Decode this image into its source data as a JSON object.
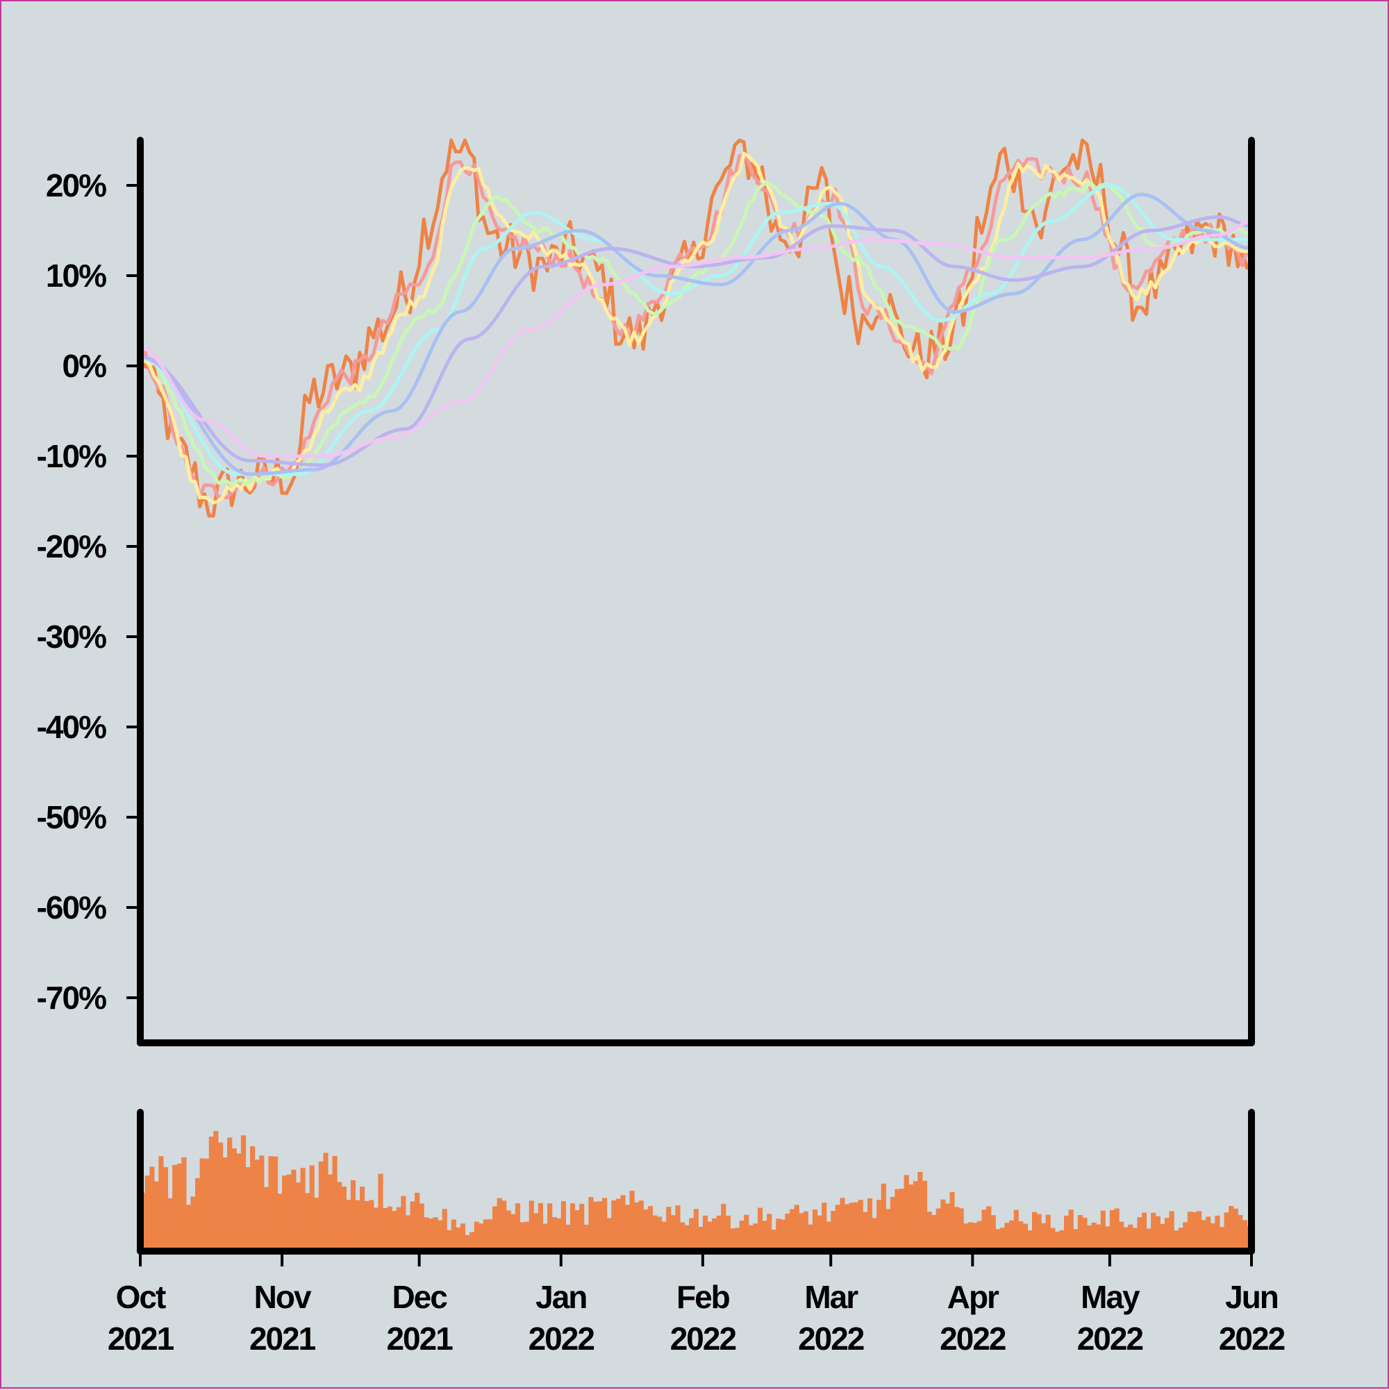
{
  "chart_data": [
    {
      "type": "line",
      "title": "",
      "xlabel": "",
      "ylabel": "",
      "x_range": [
        "2021-10-01",
        "2022-06-01"
      ],
      "ylim": [
        -0.75,
        0.25
      ],
      "y_ticks": [
        {
          "value": 0.2,
          "label": "20%"
        },
        {
          "value": 0.1,
          "label": "10%"
        },
        {
          "value": 0.0,
          "label": "0%"
        },
        {
          "value": -0.1,
          "label": "-10%"
        },
        {
          "value": -0.2,
          "label": "-20%"
        },
        {
          "value": -0.3,
          "label": "-30%"
        },
        {
          "value": -0.4,
          "label": "-40%"
        },
        {
          "value": -0.5,
          "label": "-50%"
        },
        {
          "value": -0.6,
          "label": "-60%"
        },
        {
          "value": -0.7,
          "label": "-70%"
        }
      ],
      "grid": false,
      "legend": "none",
      "raw_series": {
        "color": "#ee8347",
        "keypoints": [
          [
            "2021-10-01",
            0.02
          ],
          [
            "2021-10-05",
            -0.04
          ],
          [
            "2021-10-10",
            -0.1
          ],
          [
            "2021-10-16",
            -0.15
          ],
          [
            "2021-10-22",
            -0.13
          ],
          [
            "2021-10-28",
            -0.125
          ],
          [
            "2021-11-03",
            -0.12
          ],
          [
            "2021-11-08",
            -0.03
          ],
          [
            "2021-11-15",
            -0.01
          ],
          [
            "2021-11-22",
            0.04
          ],
          [
            "2021-11-28",
            0.08
          ],
          [
            "2021-12-03",
            0.16
          ],
          [
            "2021-12-08",
            0.24
          ],
          [
            "2021-12-12",
            0.23
          ],
          [
            "2021-12-16",
            0.15
          ],
          [
            "2021-12-20",
            0.13
          ],
          [
            "2021-12-28",
            0.11
          ],
          [
            "2022-01-03",
            0.13
          ],
          [
            "2022-01-10",
            0.1
          ],
          [
            "2022-01-14",
            0.04
          ],
          [
            "2022-01-18",
            0.03
          ],
          [
            "2022-01-23",
            0.08
          ],
          [
            "2022-01-29",
            0.11
          ],
          [
            "2022-02-04",
            0.19
          ],
          [
            "2022-02-09",
            0.24
          ],
          [
            "2022-02-13",
            0.22
          ],
          [
            "2022-02-17",
            0.15
          ],
          [
            "2022-02-21",
            0.14
          ],
          [
            "2022-02-27",
            0.2
          ],
          [
            "2022-03-04",
            0.08
          ],
          [
            "2022-03-08",
            0.05
          ],
          [
            "2022-03-12",
            0.08
          ],
          [
            "2022-03-17",
            0.03
          ],
          [
            "2022-03-21",
            0.01
          ],
          [
            "2022-03-25",
            0.02
          ],
          [
            "2022-03-30",
            0.06
          ],
          [
            "2022-04-03",
            0.16
          ],
          [
            "2022-04-08",
            0.23
          ],
          [
            "2022-04-12",
            0.2
          ],
          [
            "2022-04-16",
            0.15
          ],
          [
            "2022-04-20",
            0.22
          ],
          [
            "2022-04-24",
            0.23
          ],
          [
            "2022-04-29",
            0.2
          ],
          [
            "2022-05-03",
            0.13
          ],
          [
            "2022-05-07",
            0.07
          ],
          [
            "2022-05-12",
            0.09
          ],
          [
            "2022-05-17",
            0.13
          ],
          [
            "2022-05-22",
            0.15
          ],
          [
            "2022-05-27",
            0.14
          ],
          [
            "2022-06-01",
            0.09
          ]
        ]
      },
      "series": [
        {
          "color": "#f59a9a",
          "points": [
            [
              "2021-10-01",
              0.01
            ],
            [
              "2021-10-15",
              -0.14
            ],
            [
              "2021-11-01",
              -0.12
            ],
            [
              "2021-11-15",
              -0.01
            ],
            [
              "2021-12-01",
              0.09
            ],
            [
              "2021-12-10",
              0.23
            ],
            [
              "2021-12-20",
              0.14
            ],
            [
              "2022-01-01",
              0.12
            ],
            [
              "2022-01-15",
              0.04
            ],
            [
              "2022-02-01",
              0.14
            ],
            [
              "2022-02-10",
              0.23
            ],
            [
              "2022-02-20",
              0.15
            ],
            [
              "2022-03-01",
              0.19
            ],
            [
              "2022-03-10",
              0.06
            ],
            [
              "2022-03-22",
              0.0
            ],
            [
              "2022-04-01",
              0.11
            ],
            [
              "2022-04-10",
              0.22
            ],
            [
              "2022-04-25",
              0.21
            ],
            [
              "2022-05-05",
              0.09
            ],
            [
              "2022-05-20",
              0.15
            ],
            [
              "2022-06-01",
              0.12
            ]
          ]
        },
        {
          "color": "#ffeea0",
          "points": [
            [
              "2021-10-01",
              0.01
            ],
            [
              "2021-10-16",
              -0.145
            ],
            [
              "2021-11-01",
              -0.12
            ],
            [
              "2021-11-15",
              -0.03
            ],
            [
              "2021-12-01",
              0.07
            ],
            [
              "2021-12-11",
              0.225
            ],
            [
              "2021-12-22",
              0.15
            ],
            [
              "2022-01-02",
              0.12
            ],
            [
              "2022-01-17",
              0.03
            ],
            [
              "2022-02-01",
              0.13
            ],
            [
              "2022-02-11",
              0.23
            ],
            [
              "2022-02-21",
              0.14
            ],
            [
              "2022-03-01",
              0.2
            ],
            [
              "2022-03-11",
              0.06
            ],
            [
              "2022-03-23",
              -0.005
            ],
            [
              "2022-04-02",
              0.1
            ],
            [
              "2022-04-12",
              0.22
            ],
            [
              "2022-04-26",
              0.2
            ],
            [
              "2022-05-07",
              0.08
            ],
            [
              "2022-05-20",
              0.14
            ],
            [
              "2022-06-01",
              0.13
            ]
          ]
        },
        {
          "color": "#c8f7b5",
          "points": [
            [
              "2021-10-01",
              0.01
            ],
            [
              "2021-10-20",
              -0.13
            ],
            [
              "2021-11-03",
              -0.12
            ],
            [
              "2021-11-18",
              -0.04
            ],
            [
              "2021-12-03",
              0.06
            ],
            [
              "2021-12-18",
              0.185
            ],
            [
              "2021-12-28",
              0.15
            ],
            [
              "2022-01-08",
              0.12
            ],
            [
              "2022-01-22",
              0.06
            ],
            [
              "2022-02-03",
              0.11
            ],
            [
              "2022-02-15",
              0.2
            ],
            [
              "2022-02-26",
              0.17
            ],
            [
              "2022-03-06",
              0.12
            ],
            [
              "2022-03-18",
              0.04
            ],
            [
              "2022-03-28",
              0.02
            ],
            [
              "2022-04-08",
              0.14
            ],
            [
              "2022-04-18",
              0.19
            ],
            [
              "2022-04-30",
              0.2
            ],
            [
              "2022-05-12",
              0.13
            ],
            [
              "2022-05-22",
              0.15
            ],
            [
              "2022-06-01",
              0.15
            ]
          ]
        },
        {
          "color": "#aef4f2",
          "points": [
            [
              "2021-10-01",
              0.01
            ],
            [
              "2021-10-22",
              -0.12
            ],
            [
              "2021-11-05",
              -0.12
            ],
            [
              "2021-11-20",
              -0.05
            ],
            [
              "2021-12-05",
              0.04
            ],
            [
              "2021-12-15",
              0.13
            ],
            [
              "2021-12-26",
              0.17
            ],
            [
              "2022-01-08",
              0.14
            ],
            [
              "2022-01-25",
              0.08
            ],
            [
              "2022-02-05",
              0.1
            ],
            [
              "2022-02-18",
              0.17
            ],
            [
              "2022-03-01",
              0.18
            ],
            [
              "2022-03-12",
              0.11
            ],
            [
              "2022-03-25",
              0.05
            ],
            [
              "2022-04-05",
              0.08
            ],
            [
              "2022-04-18",
              0.16
            ],
            [
              "2022-05-01",
              0.2
            ],
            [
              "2022-05-15",
              0.14
            ],
            [
              "2022-06-01",
              0.14
            ]
          ]
        },
        {
          "color": "#a9c0f2",
          "points": [
            [
              "2021-10-01",
              0.01
            ],
            [
              "2021-10-25",
              -0.12
            ],
            [
              "2021-11-08",
              -0.115
            ],
            [
              "2021-11-25",
              -0.05
            ],
            [
              "2021-12-10",
              0.06
            ],
            [
              "2021-12-22",
              0.13
            ],
            [
              "2022-01-05",
              0.15
            ],
            [
              "2022-01-22",
              0.1
            ],
            [
              "2022-02-05",
              0.09
            ],
            [
              "2022-02-20",
              0.15
            ],
            [
              "2022-03-03",
              0.18
            ],
            [
              "2022-03-15",
              0.14
            ],
            [
              "2022-03-28",
              0.06
            ],
            [
              "2022-04-10",
              0.08
            ],
            [
              "2022-04-25",
              0.14
            ],
            [
              "2022-05-08",
              0.19
            ],
            [
              "2022-05-22",
              0.15
            ],
            [
              "2022-06-01",
              0.13
            ]
          ]
        },
        {
          "color": "#bcb3f0",
          "points": [
            [
              "2021-10-01",
              0.01
            ],
            [
              "2021-10-25",
              -0.105
            ],
            [
              "2021-11-10",
              -0.11
            ],
            [
              "2021-11-28",
              -0.07
            ],
            [
              "2021-12-12",
              0.03
            ],
            [
              "2021-12-28",
              0.11
            ],
            [
              "2022-01-12",
              0.13
            ],
            [
              "2022-01-30",
              0.11
            ],
            [
              "2022-02-15",
              0.12
            ],
            [
              "2022-03-01",
              0.155
            ],
            [
              "2022-03-15",
              0.15
            ],
            [
              "2022-03-28",
              0.11
            ],
            [
              "2022-04-10",
              0.095
            ],
            [
              "2022-04-25",
              0.11
            ],
            [
              "2022-05-10",
              0.15
            ],
            [
              "2022-05-25",
              0.165
            ],
            [
              "2022-06-01",
              0.155
            ]
          ]
        },
        {
          "color": "#f2c5f3",
          "points": [
            [
              "2021-10-01",
              0.02
            ],
            [
              "2021-10-15",
              -0.06
            ],
            [
              "2021-10-28",
              -0.1
            ],
            [
              "2021-11-10",
              -0.1
            ],
            [
              "2021-11-25",
              -0.08
            ],
            [
              "2021-12-10",
              -0.04
            ],
            [
              "2021-12-25",
              0.04
            ],
            [
              "2022-01-10",
              0.09
            ],
            [
              "2022-01-25",
              0.11
            ],
            [
              "2022-02-10",
              0.12
            ],
            [
              "2022-02-25",
              0.13
            ],
            [
              "2022-03-10",
              0.14
            ],
            [
              "2022-03-25",
              0.135
            ],
            [
              "2022-04-10",
              0.12
            ],
            [
              "2022-04-25",
              0.12
            ],
            [
              "2022-05-10",
              0.13
            ],
            [
              "2022-05-25",
              0.145
            ],
            [
              "2022-06-01",
              0.16
            ]
          ]
        }
      ]
    },
    {
      "type": "bar",
      "title": "",
      "xlabel": "",
      "ylabel": "",
      "color": "#ee8347",
      "x_range": [
        "2021-10-01",
        "2022-06-01"
      ],
      "x_ticks": [
        {
          "value": "2021-10-01",
          "month": "Oct",
          "year": "2021"
        },
        {
          "value": "2021-11-01",
          "month": "Nov",
          "year": "2021"
        },
        {
          "value": "2021-12-01",
          "month": "Dec",
          "year": "2021"
        },
        {
          "value": "2022-01-01",
          "month": "Jan",
          "year": "2022"
        },
        {
          "value": "2022-02-01",
          "month": "Feb",
          "year": "2022"
        },
        {
          "value": "2022-03-01",
          "month": "Mar",
          "year": "2022"
        },
        {
          "value": "2022-04-01",
          "month": "Apr",
          "year": "2022"
        },
        {
          "value": "2022-05-01",
          "month": "May",
          "year": "2022"
        },
        {
          "value": "2022-06-01",
          "month": "Jun",
          "year": "2022"
        }
      ],
      "relative_volume_profile": [
        [
          "2021-10-01",
          0.65
        ],
        [
          "2021-10-10",
          0.6
        ],
        [
          "2021-10-20",
          0.85
        ],
        [
          "2021-11-01",
          0.62
        ],
        [
          "2021-11-10",
          0.7
        ],
        [
          "2021-11-20",
          0.52
        ],
        [
          "2021-12-01",
          0.4
        ],
        [
          "2021-12-10",
          0.2
        ],
        [
          "2021-12-20",
          0.35
        ],
        [
          "2022-01-01",
          0.32
        ],
        [
          "2022-01-15",
          0.38
        ],
        [
          "2022-02-01",
          0.3
        ],
        [
          "2022-02-15",
          0.28
        ],
        [
          "2022-03-01",
          0.33
        ],
        [
          "2022-03-20",
          0.5
        ],
        [
          "2022-04-01",
          0.3
        ],
        [
          "2022-04-15",
          0.25
        ],
        [
          "2022-05-01",
          0.28
        ],
        [
          "2022-05-15",
          0.25
        ],
        [
          "2022-06-01",
          0.3
        ]
      ]
    }
  ]
}
